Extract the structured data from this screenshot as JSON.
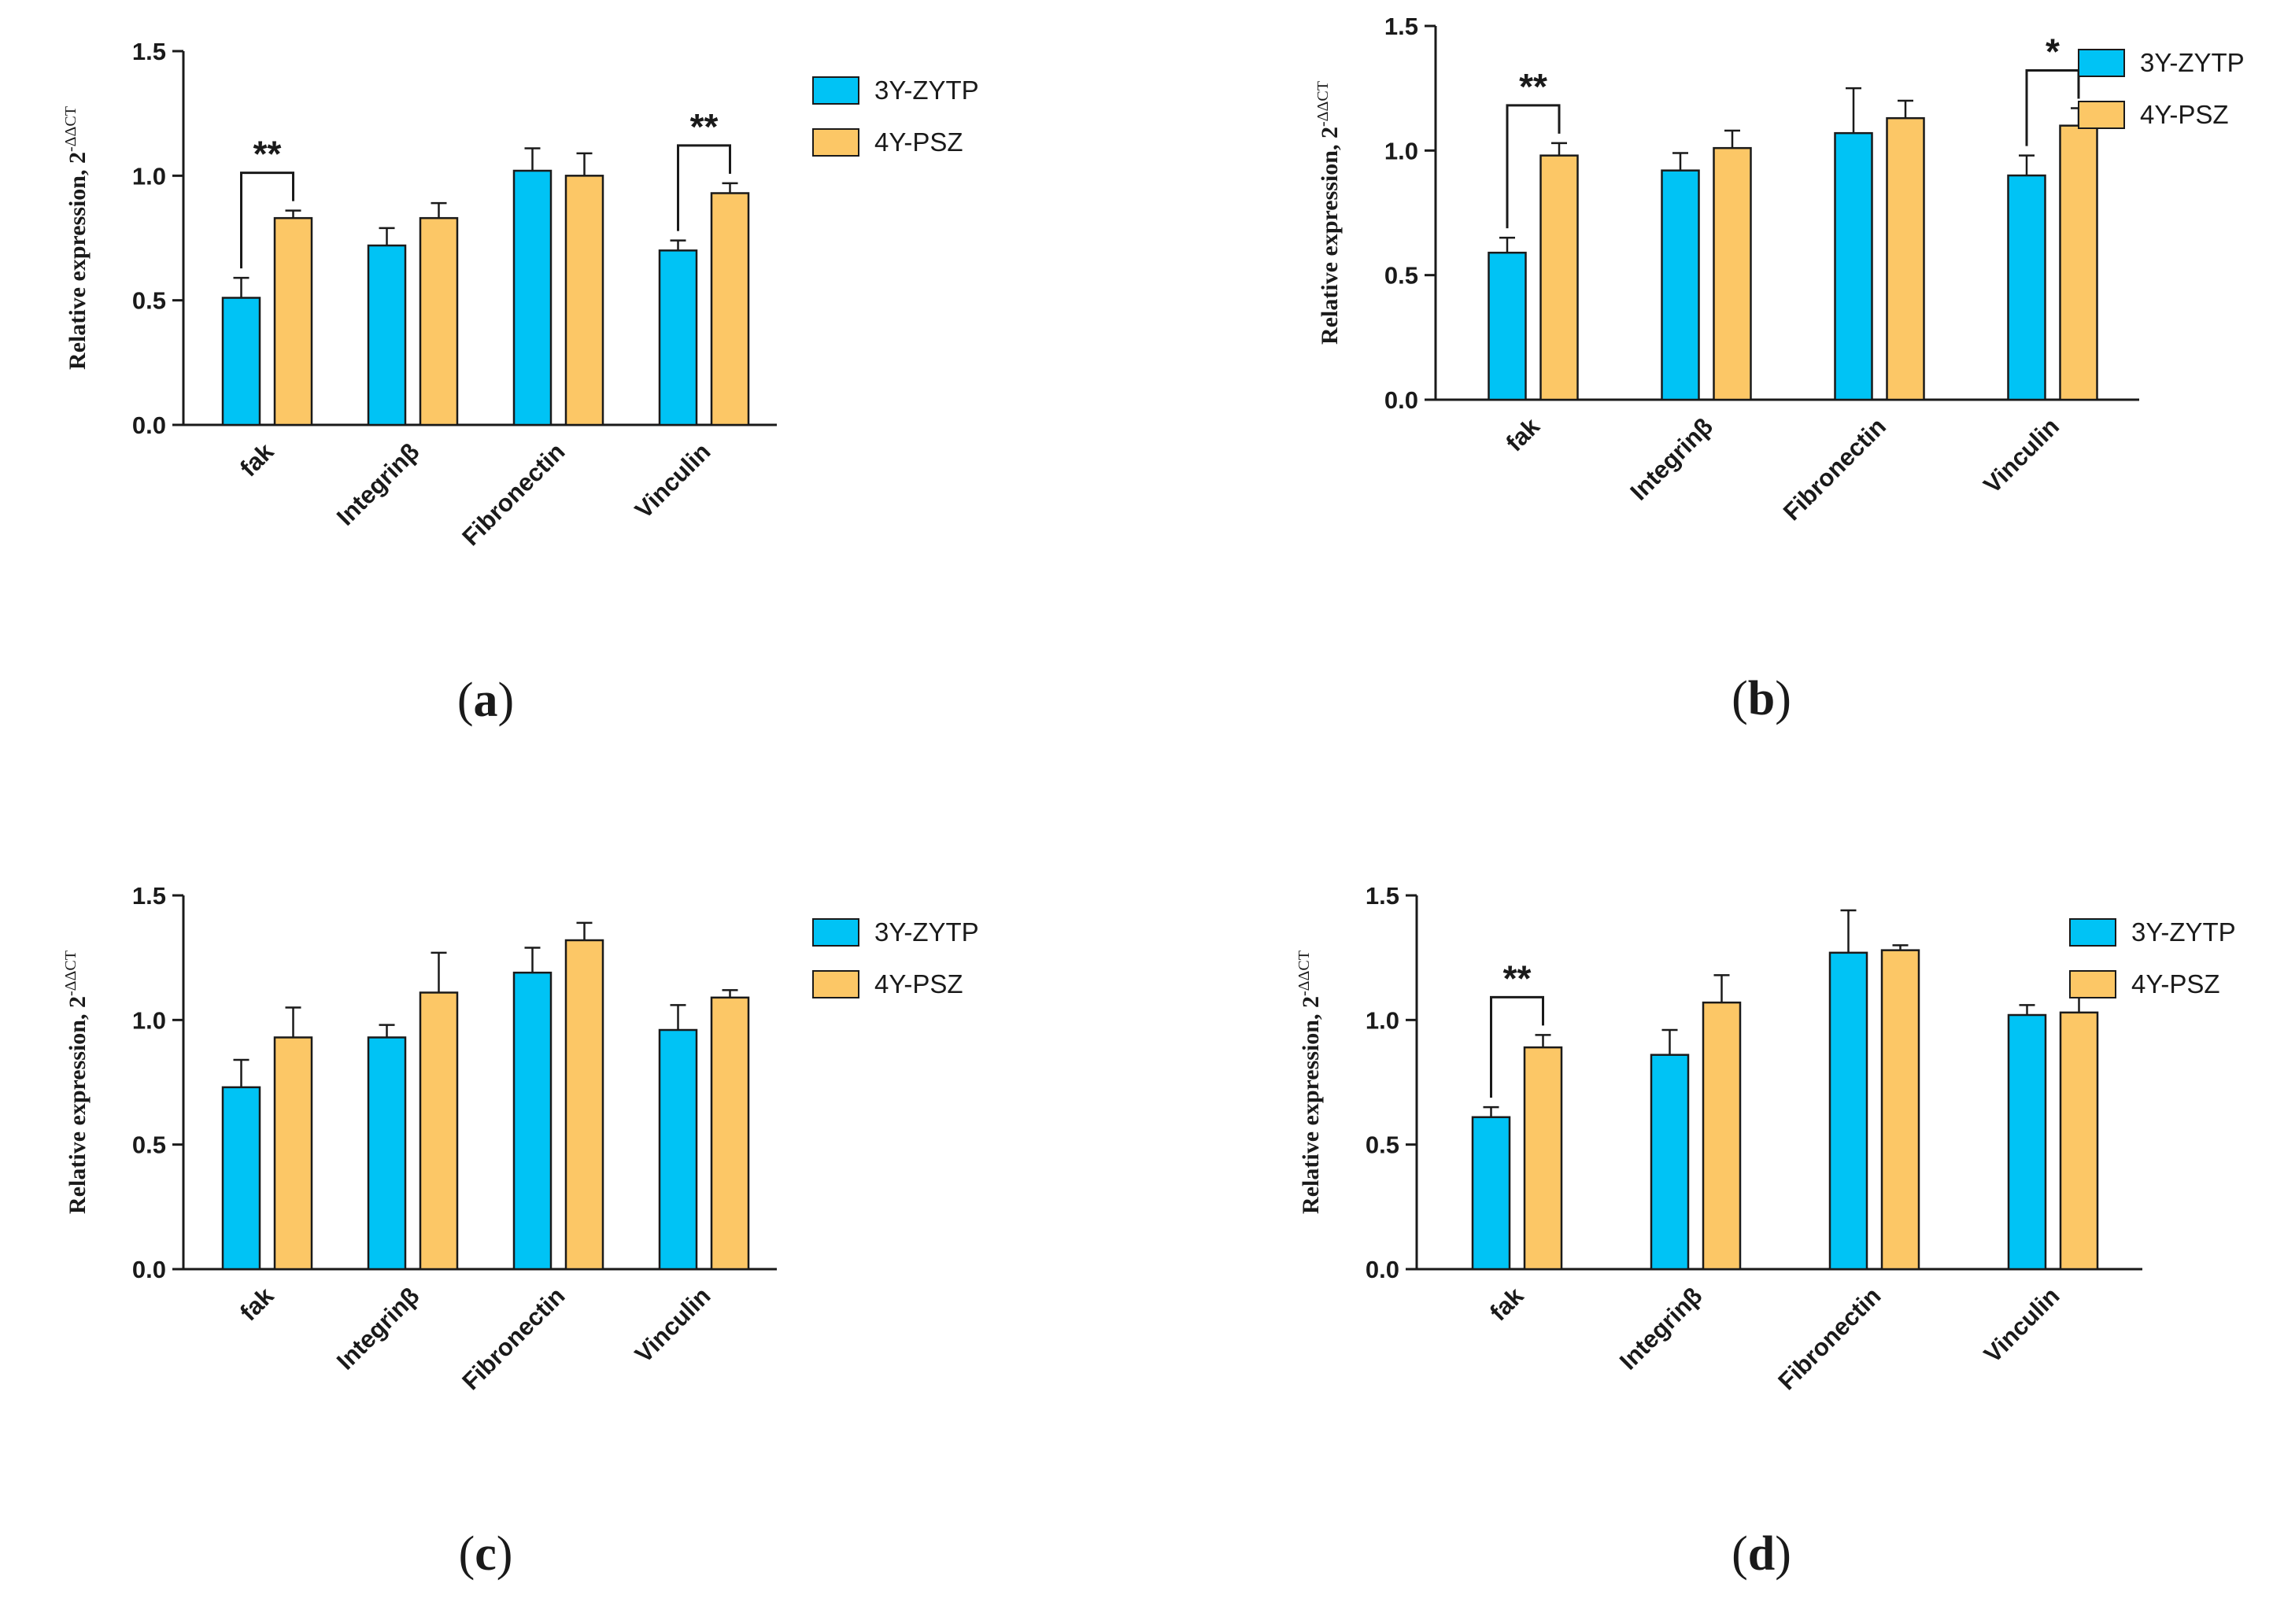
{
  "colors": {
    "series_a": "#00c3f5",
    "series_b": "#fcc766",
    "outline": "#1a1a1a",
    "background": "#ffffff"
  },
  "legend_labels": [
    "3Y-ZYTP",
    "4Y-PSZ"
  ],
  "chart_data": [
    {
      "id": "a",
      "type": "bar",
      "panel_label": "a",
      "ylabel": "Relative expression, 2",
      "ylabel_superscript": "-ΔΔCT",
      "ylim": [
        0,
        1.5
      ],
      "yticks": [
        "0.0",
        "0.5",
        "1.0",
        "1.5"
      ],
      "categories": [
        "fak",
        "Integrinβ",
        "Fibronectin",
        "Vinculin"
      ],
      "series": [
        {
          "name": "3Y-ZYTP",
          "values": [
            0.51,
            0.72,
            1.02,
            0.7
          ],
          "errors": [
            0.08,
            0.07,
            0.09,
            0.04
          ]
        },
        {
          "name": "4Y-PSZ",
          "values": [
            0.83,
            0.83,
            1.0,
            0.93
          ],
          "errors": [
            0.03,
            0.06,
            0.09,
            0.04
          ]
        }
      ],
      "significance": [
        {
          "category": "fak",
          "label": "**"
        },
        {
          "category": "Vinculin",
          "label": "**"
        }
      ]
    },
    {
      "id": "b",
      "type": "bar",
      "panel_label": "b",
      "ylabel": "Relative expression, 2",
      "ylabel_superscript": "-ΔΔCT",
      "ylim": [
        0,
        1.5
      ],
      "yticks": [
        "0.0",
        "0.5",
        "1.0",
        "1.5"
      ],
      "categories": [
        "fak",
        "Integrinβ",
        "Fibronectin",
        "Vinculin"
      ],
      "series": [
        {
          "name": "3Y-ZYTP",
          "values": [
            0.59,
            0.92,
            1.07,
            0.9
          ],
          "errors": [
            0.06,
            0.07,
            0.18,
            0.08
          ]
        },
        {
          "name": "4Y-PSZ",
          "values": [
            0.98,
            1.01,
            1.13,
            1.1
          ],
          "errors": [
            0.05,
            0.07,
            0.07,
            0.07
          ]
        }
      ],
      "significance": [
        {
          "category": "fak",
          "label": "**"
        },
        {
          "category": "Vinculin",
          "label": "*"
        }
      ]
    },
    {
      "id": "c",
      "type": "bar",
      "panel_label": "c",
      "ylabel": "Relative expression, 2",
      "ylabel_superscript": "-ΔΔCT",
      "ylim": [
        0,
        1.5
      ],
      "yticks": [
        "0.0",
        "0.5",
        "1.0",
        "1.5"
      ],
      "categories": [
        "fak",
        "Integrinβ",
        "Fibronectin",
        "Vinculin"
      ],
      "series": [
        {
          "name": "3Y-ZYTP",
          "values": [
            0.73,
            0.93,
            1.19,
            0.96
          ],
          "errors": [
            0.11,
            0.05,
            0.1,
            0.1
          ]
        },
        {
          "name": "4Y-PSZ",
          "values": [
            0.93,
            1.11,
            1.32,
            1.09
          ],
          "errors": [
            0.12,
            0.16,
            0.07,
            0.03
          ]
        }
      ],
      "significance": []
    },
    {
      "id": "d",
      "type": "bar",
      "panel_label": "d",
      "ylabel": "Relative expression, 2",
      "ylabel_superscript": "-ΔΔCT",
      "ylim": [
        0,
        1.5
      ],
      "yticks": [
        "0.0",
        "0.5",
        "1.0",
        "1.5"
      ],
      "categories": [
        "fak",
        "Integrinβ",
        "Fibronectin",
        "Vinculin"
      ],
      "series": [
        {
          "name": "3Y-ZYTP",
          "values": [
            0.61,
            0.86,
            1.27,
            1.02
          ],
          "errors": [
            0.04,
            0.1,
            0.17,
            0.04
          ]
        },
        {
          "name": "4Y-PSZ",
          "values": [
            0.89,
            1.07,
            1.28,
            1.03
          ],
          "errors": [
            0.05,
            0.11,
            0.02,
            0.12
          ]
        }
      ],
      "significance": [
        {
          "category": "fak",
          "label": "**"
        }
      ]
    }
  ]
}
